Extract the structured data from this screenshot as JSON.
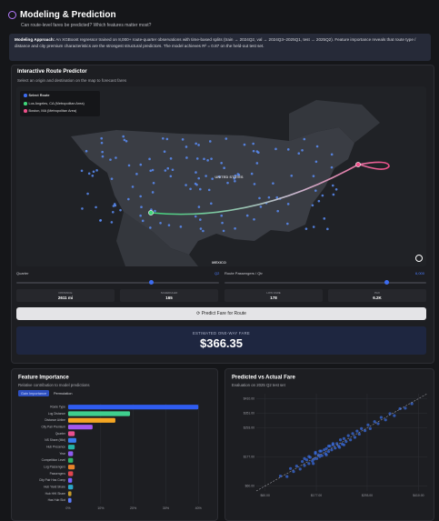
{
  "header": {
    "title": "Modeling & Prediction",
    "subtitle": "Can route-level fares be predicted? Which features matter most?"
  },
  "approach": {
    "label": "Modeling Approach:",
    "text": "An XGBoost regressor trained on 8,000+ route-quarter observations with time-based splits (train → 2024Q2, val → 2024Q3–2025Q1, test → 2025Q2). Feature importance reveals that route type / distance and city premium characteristics are the strongest structural predictors. The model achieves R² = 0.87 on the held-out test set."
  },
  "predictor": {
    "title": "Interactive Route Predictor",
    "subtitle": "Select an origin and destination on the map to forecast fares",
    "map": {
      "legend_title": "Select Route",
      "origin": "Los Angeles, CA (Metropolitan Area)",
      "destination": "Boston, MA (Metropolitan Area)",
      "country_label": "UNITED STATES",
      "mexico_label": "MEXICO"
    },
    "quarter": {
      "label": "Quarter",
      "value": "Q2"
    },
    "passengers": {
      "label": "Route Passengers / Qtr",
      "value": "6,000"
    },
    "stats": [
      {
        "label": "DISTANCE",
        "value": "2611 mi"
      },
      {
        "label": "SCHEDULED",
        "value": "165"
      },
      {
        "label": "LOW FARE",
        "value": "178"
      },
      {
        "label": "PAX",
        "value": "6.2K"
      }
    ],
    "button": "Predict Fare for Route",
    "result": {
      "label": "ESTIMATED ONE-WAY FARE",
      "value": "$366.35"
    }
  },
  "chart_data": [
    {
      "type": "bar",
      "orientation": "horizontal",
      "title": "Feature Importance",
      "subtitle": "Relative contribution to model predictions",
      "tabs": [
        "Gain Importance",
        "Permutation"
      ],
      "categories": [
        "Route Type",
        "Log Distance",
        "Distance Airline",
        "City Pair Premium",
        "Quarter",
        "NS Share (Mkt)",
        "Hub Presence",
        "Year",
        "Competition Level",
        "Log Passengers",
        "Passengers",
        "City Pair Has Comp",
        "Hub Yield Share",
        "Hub HHI Share",
        "Has Hub Slot"
      ],
      "values": [
        40,
        19,
        14.5,
        7.5,
        2,
        2.5,
        2,
        1.5,
        1.5,
        2,
        1.5,
        1.2,
        1.5,
        1,
        1
      ],
      "colors": [
        "#2f5cf0",
        "#3fcf8e",
        "#f5a623",
        "#a259f0",
        "#e8508f",
        "#3a7bef",
        "#24b3a8",
        "#8e5cf0",
        "#2fb36a",
        "#e8832a",
        "#e0464f",
        "#7b61ff",
        "#2aa7c9",
        "#c49a2a",
        "#5c7cfa"
      ],
      "xlim": [
        0,
        43
      ],
      "xticks": [
        {
          "value": 0,
          "label": "0%"
        },
        {
          "value": 10,
          "label": "10%"
        },
        {
          "value": 20,
          "label": "20%"
        },
        {
          "value": 30,
          "label": "30%"
        },
        {
          "value": 40,
          "label": "40%"
        }
      ],
      "grid": true
    },
    {
      "type": "scatter",
      "title": "Predicted vs Actual Fare",
      "subtitle": "Evaluation on 2025 Q2 test set",
      "color": "#3b6fe8",
      "reference_line": true,
      "x": [
        95,
        110,
        118,
        125,
        132,
        140,
        145,
        150,
        155,
        160,
        163,
        168,
        172,
        175,
        178,
        182,
        185,
        188,
        190,
        195,
        198,
        200,
        205,
        208,
        212,
        215,
        220,
        224,
        228,
        232,
        236,
        240,
        245,
        250,
        255,
        260,
        265,
        270,
        275,
        280,
        288,
        295,
        300,
        310,
        318,
        325,
        335,
        345,
        355,
        368,
        380,
        395,
        150,
        170,
        185,
        200,
        215,
        230,
        175,
        160,
        205,
        240
      ],
      "y": [
        100,
        98,
        130,
        118,
        140,
        128,
        158,
        142,
        165,
        150,
        175,
        160,
        168,
        190,
        170,
        185,
        178,
        200,
        182,
        205,
        190,
        210,
        198,
        220,
        205,
        225,
        212,
        230,
        220,
        245,
        228,
        250,
        238,
        262,
        245,
        270,
        255,
        280,
        268,
        290,
        282,
        305,
        290,
        318,
        310,
        335,
        325,
        350,
        342,
        370,
        372,
        390,
        170,
        150,
        200,
        185,
        230,
        215,
        195,
        178,
        220,
        225
      ],
      "xlim": [
        40,
        430
      ],
      "ylim": [
        40,
        430
      ],
      "xticks": [
        {
          "value": 60,
          "label": "$60.00"
        },
        {
          "value": 177,
          "label": "$177.00"
        },
        {
          "value": 293,
          "label": "$293.00"
        },
        {
          "value": 410,
          "label": "$410.00"
        }
      ],
      "yticks": [
        {
          "value": 60,
          "label": "$60.00"
        },
        {
          "value": 177,
          "label": "$177.00"
        },
        {
          "value": 293,
          "label": "$293.00"
        },
        {
          "value": 351,
          "label": "$351.00"
        },
        {
          "value": 410,
          "label": "$410.00"
        }
      ],
      "grid": true
    }
  ]
}
